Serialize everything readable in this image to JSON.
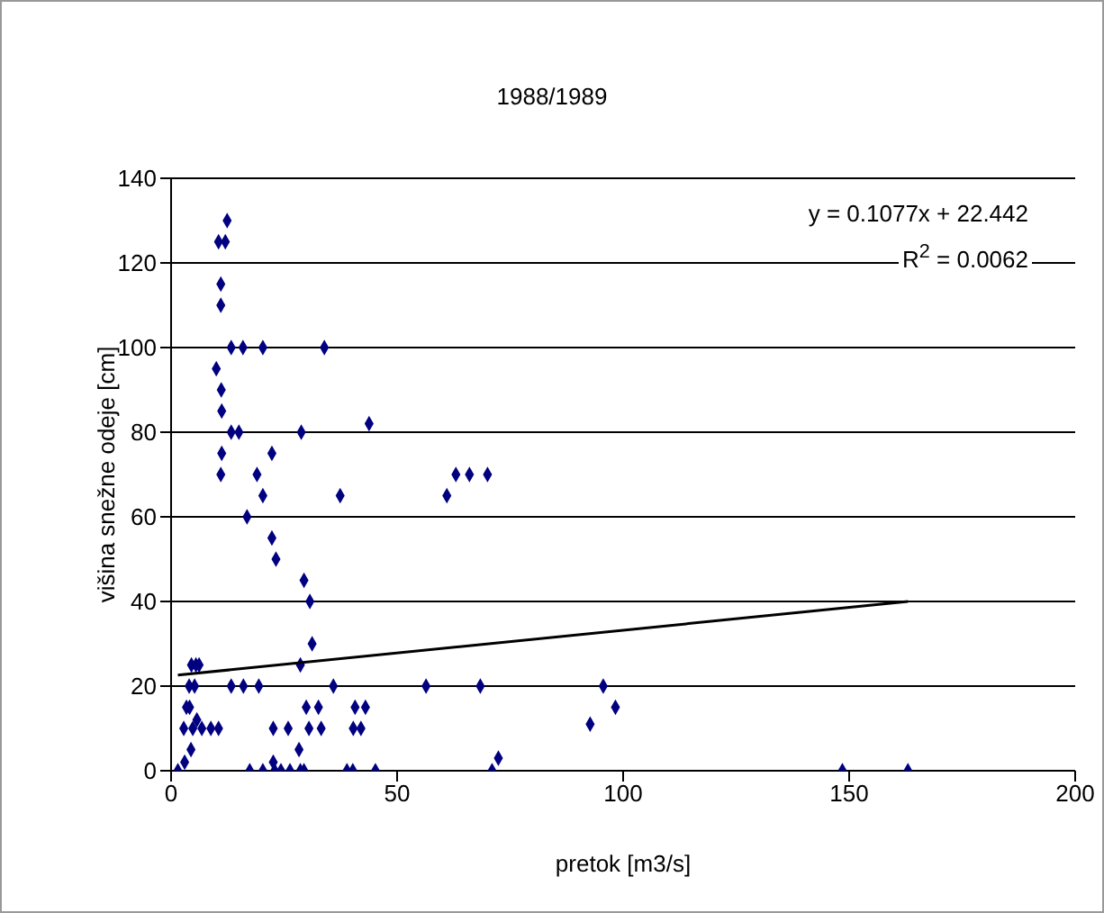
{
  "chart_data": {
    "type": "scatter",
    "title": "1988/1989",
    "xlabel": "pretok [m3/s]",
    "ylabel": "višina snežne odeje [cm]",
    "annotations": [
      "y = 0.1077x + 22.442",
      "R$^{2}$ = 0.0062"
    ],
    "xlim": [
      0,
      200
    ],
    "xticks": [
      0,
      50,
      100,
      150,
      200
    ],
    "ylim": [
      0,
      140
    ],
    "yticks": [
      0,
      20,
      40,
      60,
      80,
      100,
      120,
      140
    ],
    "grid": "y",
    "marker": "diamond",
    "series": [
      {
        "color": "#000080",
        "x": [
          12.4,
          10.5,
          12,
          11,
          11,
          13.3,
          15.9,
          20.3,
          33.9,
          10,
          11.1,
          11.2,
          13.3,
          15,
          28.8,
          43.8,
          11.2,
          22.3,
          11,
          19,
          20.3,
          37.4,
          16.8,
          22.3,
          23.2,
          29.4,
          30.7,
          31.2,
          28.6,
          4.5,
          5.5,
          6.2,
          4,
          5.2,
          13.3,
          16,
          19.4,
          35.9,
          56.4,
          68.4,
          95.6,
          3.4,
          4.1,
          29.9,
          32.6,
          40.7,
          43,
          98.3,
          2.8,
          4.8,
          6.8,
          8.8,
          10.5,
          22.6,
          25.9,
          30.5,
          33.2,
          40.3,
          42,
          92.7,
          5.7,
          4.4,
          28.3,
          22.6,
          72.4,
          1.5,
          3,
          17.4,
          20.3,
          22.9,
          24.3,
          26.3,
          28.6,
          29.4,
          38.9,
          40.2,
          45.2,
          71,
          148.5,
          163,
          61,
          63,
          66,
          70
        ],
        "values": [
          130,
          125,
          125,
          115,
          110,
          100,
          100,
          100,
          100,
          95,
          90,
          85,
          80,
          80,
          80,
          82,
          75,
          75,
          70,
          70,
          65,
          65,
          60,
          55,
          50,
          45,
          40,
          30,
          25,
          25,
          25,
          25,
          20,
          20,
          20,
          20,
          20,
          20,
          20,
          20,
          20,
          15,
          15,
          15,
          15,
          15,
          15,
          15,
          10,
          10,
          10,
          10,
          10,
          10,
          10,
          10,
          10,
          10,
          10,
          11,
          12,
          5,
          5,
          2,
          3,
          0,
          2,
          0,
          0,
          0,
          0,
          0,
          0,
          0,
          0,
          0,
          0,
          0,
          0,
          0,
          65,
          70,
          70,
          70
        ]
      },
      {
        "type": "line",
        "color": "#000000",
        "marker": "none",
        "x": [
          1.5,
          163
        ],
        "values": [
          22.6,
          40.0
        ]
      }
    ]
  }
}
